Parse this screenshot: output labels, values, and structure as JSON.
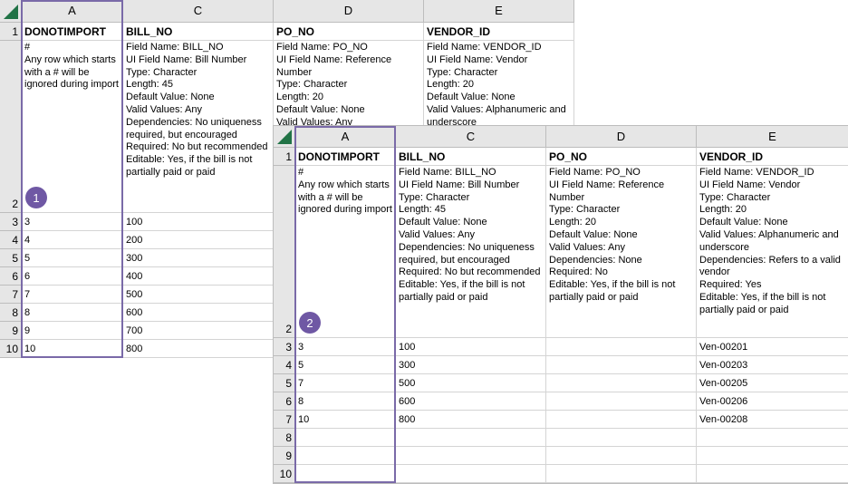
{
  "sheets": [
    {
      "columns": [
        "A",
        "C",
        "D",
        "E"
      ],
      "rows": [
        {
          "num": "1",
          "cells": [
            "DONOTIMPORT",
            "BILL_NO",
            "PO_NO",
            "VENDOR_ID"
          ]
        },
        {
          "num": "2",
          "cells": [
            [
              "#",
              "Any row which starts with a # will be ignored during import"
            ],
            [
              "Field Name: BILL_NO",
              "UI Field Name: Bill Number",
              "Type: Character",
              "Length: 45",
              "Default Value: None",
              "Valid Values: Any",
              "Dependencies: No uniqueness required, but encouraged",
              "Required: No but recommended",
              "Editable: Yes, if the bill is not partially paid or paid"
            ],
            [
              "Field Name: PO_NO",
              "UI Field Name: Reference Number",
              "Type: Character",
              "Length: 20",
              "Default Value: None",
              "Valid Values: Any"
            ],
            [
              "Field Name: VENDOR_ID",
              "UI Field Name: Vendor",
              "Type: Character",
              "Length: 20",
              "Default Value: None",
              "Valid Values: Alphanumeric and underscore"
            ]
          ]
        },
        {
          "num": "3",
          "cells": [
            "3",
            "100",
            null,
            null
          ]
        },
        {
          "num": "4",
          "cells": [
            "4",
            "200",
            null,
            null
          ]
        },
        {
          "num": "5",
          "cells": [
            "5",
            "300",
            null,
            null
          ]
        },
        {
          "num": "6",
          "cells": [
            "6",
            "400",
            null,
            null
          ]
        },
        {
          "num": "7",
          "cells": [
            "7",
            "500",
            null,
            null
          ]
        },
        {
          "num": "8",
          "cells": [
            "8",
            "600",
            null,
            null
          ]
        },
        {
          "num": "9",
          "cells": [
            "9",
            "700",
            null,
            null
          ]
        },
        {
          "num": "10",
          "cells": [
            "10",
            "800",
            null,
            null
          ]
        }
      ],
      "callout": "1"
    },
    {
      "columns": [
        "A",
        "C",
        "D",
        "E"
      ],
      "rows": [
        {
          "num": "1",
          "cells": [
            "DONOTIMPORT",
            "BILL_NO",
            "PO_NO",
            "VENDOR_ID"
          ]
        },
        {
          "num": "2",
          "cells": [
            [
              "#",
              "Any row which starts with a # will be ignored during import"
            ],
            [
              "Field Name: BILL_NO",
              "UI Field Name: Bill Number",
              "Type: Character",
              "Length: 45",
              "Default Value: None",
              "Valid Values: Any",
              "Dependencies: No uniqueness required, but encouraged",
              "Required: No but recommended",
              "Editable: Yes, if the bill is not partially paid or paid"
            ],
            [
              "Field Name: PO_NO",
              "UI Field Name: Reference Number",
              "Type: Character",
              "Length: 20",
              "Default Value: None",
              "Valid Values: Any",
              "Dependencies: None",
              "Required: No",
              "Editable: Yes, if the bill is not partially paid or paid"
            ],
            [
              "Field Name: VENDOR_ID",
              "UI Field Name: Vendor",
              "Type: Character",
              "Length: 20",
              "Default Value: None",
              "Valid Values: Alphanumeric and underscore",
              "Dependencies: Refers to a valid vendor",
              "Required: Yes",
              "Editable: Yes, if the bill is not partially paid or paid"
            ]
          ]
        },
        {
          "num": "3",
          "cells": [
            "3",
            "100",
            null,
            "Ven-00201"
          ]
        },
        {
          "num": "4",
          "cells": [
            "5",
            "300",
            null,
            "Ven-00203"
          ]
        },
        {
          "num": "5",
          "cells": [
            "7",
            "500",
            null,
            "Ven-00205"
          ]
        },
        {
          "num": "6",
          "cells": [
            "8",
            "600",
            null,
            "Ven-00206"
          ]
        },
        {
          "num": "7",
          "cells": [
            "10",
            "800",
            null,
            "Ven-00208"
          ]
        },
        {
          "num": "8",
          "cells": [
            null,
            null,
            null,
            null
          ]
        },
        {
          "num": "9",
          "cells": [
            null,
            null,
            null,
            null
          ]
        },
        {
          "num": "10",
          "cells": [
            null,
            null,
            null,
            null
          ]
        }
      ],
      "callout": "2"
    }
  ]
}
